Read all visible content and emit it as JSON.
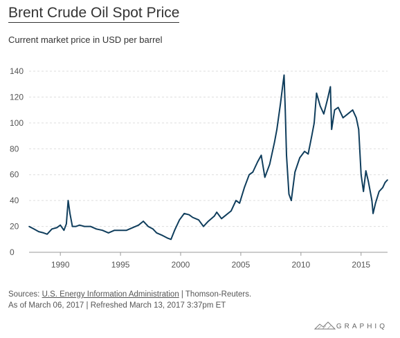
{
  "header": {
    "title": "Brent Crude Oil Spot Price",
    "subtitle": "Current market price in USD per barrel"
  },
  "footer": {
    "sources_prefix": "Sources: ",
    "source_link": "U.S. Energy Information Administration",
    "sources_suffix": " | Thomson-Reuters.",
    "as_of": "As of March 06, 2017 | Refreshed March 13, 2017 3:37pm ET"
  },
  "brand": {
    "name": "GRAPHIQ"
  },
  "colors": {
    "line": "#0f3d5c",
    "grid": "#dddddd"
  },
  "chart_data": {
    "type": "line",
    "title": "Brent Crude Oil Spot Price",
    "subtitle": "Current market price in USD per barrel",
    "xlabel": "",
    "ylabel": "",
    "xlim": [
      1987.4,
      2017.2
    ],
    "ylim": [
      0,
      140
    ],
    "x_ticks": [
      1990,
      1995,
      2000,
      2005,
      2010,
      2015
    ],
    "y_ticks": [
      0,
      20,
      40,
      60,
      80,
      100,
      120,
      140
    ],
    "grid": true,
    "legend": "none",
    "series": [
      {
        "x": [
          1987.4,
          1987.8,
          1988.2,
          1988.6,
          1988.9,
          1989.3,
          1989.7,
          1990.0,
          1990.3,
          1990.5,
          1990.65,
          1990.8,
          1991.0,
          1991.3,
          1991.6,
          1992.0,
          1992.5,
          1993.0,
          1993.5,
          1994.0,
          1994.5,
          1995.0,
          1995.5,
          1996.0,
          1996.5,
          1996.9,
          1997.3,
          1997.7,
          1998.0,
          1998.5,
          1998.9,
          1999.2,
          1999.5,
          1999.9,
          2000.3,
          2000.7,
          2001.0,
          2001.5,
          2001.9,
          2002.3,
          2002.8,
          2003.0,
          2003.4,
          2003.8,
          2004.2,
          2004.6,
          2004.9,
          2005.3,
          2005.7,
          2006.0,
          2006.4,
          2006.7,
          2007.0,
          2007.4,
          2007.8,
          2008.0,
          2008.3,
          2008.5,
          2008.6,
          2008.7,
          2008.8,
          2009.0,
          2009.2,
          2009.5,
          2009.9,
          2010.3,
          2010.6,
          2010.9,
          2011.1,
          2011.3,
          2011.6,
          2011.9,
          2012.2,
          2012.45,
          2012.55,
          2012.8,
          2013.1,
          2013.5,
          2013.9,
          2014.3,
          2014.6,
          2014.8,
          2015.0,
          2015.2,
          2015.4,
          2015.6,
          2015.9,
          2016.0,
          2016.2,
          2016.5,
          2016.8,
          2017.0,
          2017.2
        ],
        "values": [
          20,
          18,
          16,
          15,
          14,
          18,
          19,
          21,
          17,
          22,
          40,
          30,
          20,
          20,
          21,
          20,
          20,
          18,
          17,
          15,
          17,
          17,
          17,
          19,
          21,
          24,
          20,
          18,
          15,
          13,
          11,
          10,
          17,
          25,
          30,
          29,
          27,
          25,
          20,
          24,
          28,
          31,
          26,
          29,
          32,
          40,
          38,
          50,
          60,
          62,
          70,
          75,
          58,
          68,
          85,
          95,
          115,
          130,
          137,
          110,
          75,
          45,
          40,
          62,
          73,
          78,
          76,
          90,
          100,
          123,
          113,
          107,
          118,
          128,
          95,
          110,
          112,
          104,
          107,
          110,
          104,
          95,
          60,
          47,
          63,
          55,
          40,
          30,
          38,
          47,
          50,
          54,
          56
        ]
      }
    ]
  }
}
